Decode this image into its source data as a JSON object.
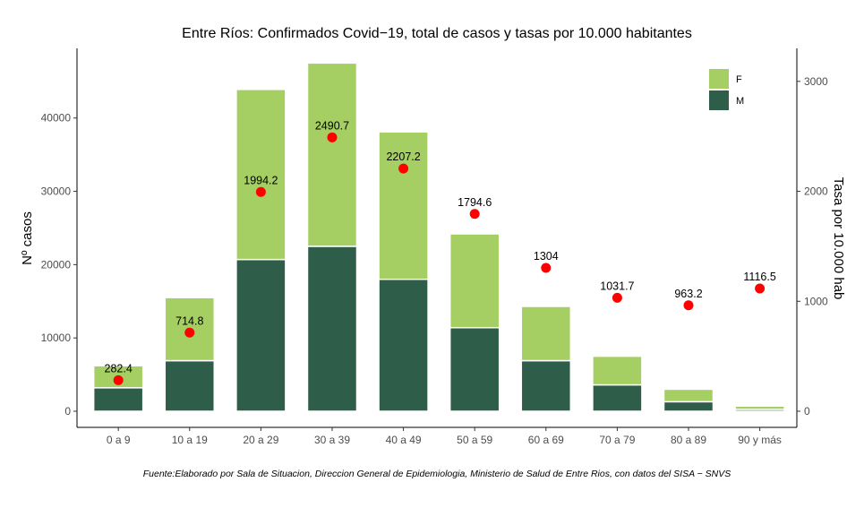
{
  "chart_data": {
    "type": "bar",
    "title": "Entre Ríos: Confirmados Covid−19, total de casos y tasas por 10.000 habitantes",
    "ylabel": "Nº casos",
    "y2label": "Tasa por 10.000 hab",
    "caption": "Fuente:Elaborado por Sala de Situacion, Direccion General de Epidemiologia, Ministerio de Salud de Entre Rios, con datos del SISA − SNVS",
    "categories": [
      "0 a 9",
      "10 a 19",
      "20 a 29",
      "30 a 39",
      "40 a 49",
      "50 a 59",
      "60 a 69",
      "70 a 79",
      "80 a 89",
      "90  y más"
    ],
    "stacked": true,
    "series": [
      {
        "name": "M",
        "color": "#2e5e4a",
        "values": [
          3200,
          6900,
          20700,
          22500,
          18000,
          11400,
          6900,
          3600,
          1300,
          250
        ]
      },
      {
        "name": "F",
        "color": "#a5cf62",
        "values": [
          3000,
          8600,
          23200,
          25000,
          20100,
          12800,
          7400,
          3900,
          1700,
          450
        ]
      }
    ],
    "rate": {
      "color": "#ff0000",
      "values": [
        282.4,
        714.8,
        1994.2,
        2490.7,
        2207.2,
        1794.6,
        1304,
        1031.7,
        963.2,
        1116.5
      ],
      "labels": [
        "282.4",
        "714.8",
        "1994.2",
        "2490.7",
        "2207.2",
        "1794.6",
        "1304",
        "1031.7",
        "963.2",
        "1116.5"
      ]
    },
    "ylim": [
      0,
      49500
    ],
    "y2lim": [
      0,
      3300
    ],
    "yticks": [
      0,
      10000,
      20000,
      30000,
      40000
    ],
    "y2ticks": [
      0,
      1000,
      2000,
      3000
    ],
    "legend": {
      "position": "top-right",
      "entries": [
        "F",
        "M"
      ]
    }
  }
}
